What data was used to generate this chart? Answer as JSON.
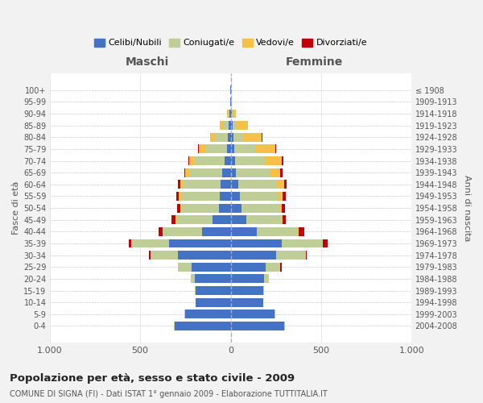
{
  "age_groups": [
    "0-4",
    "5-9",
    "10-14",
    "15-19",
    "20-24",
    "25-29",
    "30-34",
    "35-39",
    "40-44",
    "45-49",
    "50-54",
    "55-59",
    "60-64",
    "65-69",
    "70-74",
    "75-79",
    "80-84",
    "85-89",
    "90-94",
    "95-99",
    "100+"
  ],
  "birth_years": [
    "2004-2008",
    "1999-2003",
    "1994-1998",
    "1989-1993",
    "1984-1988",
    "1979-1983",
    "1974-1978",
    "1969-1973",
    "1964-1968",
    "1959-1963",
    "1954-1958",
    "1949-1953",
    "1944-1948",
    "1939-1943",
    "1934-1938",
    "1929-1933",
    "1924-1928",
    "1919-1923",
    "1914-1918",
    "1909-1913",
    "≤ 1908"
  ],
  "colors": {
    "celibi": "#4472C4",
    "coniugati": "#BFCE96",
    "vedovi": "#F5C04A",
    "divorziati": "#C0000C"
  },
  "males": {
    "celibi": [
      310,
      250,
      195,
      195,
      200,
      215,
      290,
      340,
      160,
      100,
      65,
      60,
      55,
      45,
      35,
      20,
      15,
      10,
      5,
      2,
      2
    ],
    "coniugati": [
      5,
      5,
      0,
      5,
      20,
      75,
      155,
      210,
      215,
      200,
      210,
      215,
      210,
      185,
      165,
      120,
      70,
      30,
      5,
      0,
      0
    ],
    "vedovi": [
      0,
      0,
      0,
      0,
      2,
      0,
      0,
      0,
      0,
      5,
      5,
      10,
      15,
      20,
      30,
      35,
      30,
      20,
      10,
      2,
      0
    ],
    "divorziati": [
      0,
      0,
      0,
      0,
      0,
      0,
      5,
      15,
      25,
      20,
      15,
      15,
      10,
      5,
      5,
      5,
      0,
      0,
      0,
      0,
      0
    ]
  },
  "females": {
    "celibi": [
      295,
      240,
      180,
      180,
      185,
      195,
      250,
      280,
      145,
      85,
      60,
      50,
      40,
      30,
      25,
      20,
      15,
      10,
      5,
      2,
      2
    ],
    "coniugati": [
      5,
      5,
      0,
      5,
      25,
      80,
      165,
      230,
      225,
      195,
      210,
      215,
      215,
      185,
      165,
      115,
      55,
      20,
      5,
      0,
      0
    ],
    "vedovi": [
      0,
      0,
      0,
      0,
      0,
      0,
      0,
      0,
      5,
      5,
      10,
      20,
      40,
      60,
      90,
      110,
      100,
      65,
      20,
      5,
      2
    ],
    "divorziati": [
      0,
      0,
      0,
      0,
      0,
      5,
      5,
      25,
      30,
      20,
      20,
      20,
      15,
      10,
      10,
      5,
      5,
      0,
      0,
      0,
      0
    ]
  },
  "title": "Popolazione per età, sesso e stato civile - 2009",
  "subtitle": "COMUNE DI SIGNA (FI) - Dati ISTAT 1° gennaio 2009 - Elaborazione TUTTITALIA.IT",
  "xlabel_left": "Maschi",
  "xlabel_right": "Femmine",
  "ylabel_left": "Fasce di età",
  "ylabel_right": "Anni di nascita",
  "xlim": 1000,
  "xticklabels": [
    "1.000",
    "500",
    "0",
    "500",
    "1.000"
  ],
  "bg_color": "#F2F2F2",
  "plot_bg_color": "#FFFFFF",
  "legend_labels": [
    "Celibi/Nubili",
    "Coniugati/e",
    "Vedovi/e",
    "Divorziati/e"
  ]
}
